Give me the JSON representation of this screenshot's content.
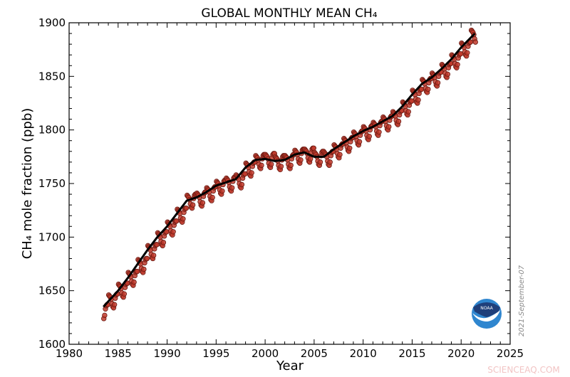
{
  "chart_data": {
    "type": "line",
    "title": "GLOBAL MONTHLY MEAN CH₄",
    "xlabel": "Year",
    "ylabel": "CH₄ mole fraction (ppb)",
    "xlim": [
      1980,
      2025
    ],
    "ylim": [
      1600,
      1900
    ],
    "xticks": [
      "1980",
      "1985",
      "1990",
      "1995",
      "2000",
      "2005",
      "2010",
      "2015",
      "2020",
      "2025"
    ],
    "yticks": [
      "1600",
      "1650",
      "1700",
      "1750",
      "1800",
      "1850",
      "1900"
    ],
    "grid": false,
    "annotation": "2021-September-07",
    "colors": {
      "monthly": "#c0392b",
      "monthly_edge": "#6b1a12",
      "trend": "#000000"
    },
    "series": [
      {
        "kind": "monthly-points",
        "data": [
          {
            "year": 1983,
            "first_month": 7,
            "values": [
              1624,
              1627,
              1633,
              1636,
              1637,
              1637
            ]
          },
          {
            "year": 1984,
            "first_month": 1,
            "values": [
              1646,
              1645,
              1644,
              1642,
              1638,
              1635,
              1634,
              1637,
              1643,
              1646,
              1647,
              1647
            ]
          },
          {
            "year": 1985,
            "first_month": 1,
            "values": [
              1656,
              1655,
              1654,
              1652,
              1648,
              1645,
              1644,
              1647,
              1653,
              1656,
              1657,
              1657
            ]
          },
          {
            "year": 1986,
            "first_month": 1,
            "values": [
              1667,
              1666,
              1665,
              1663,
              1659,
              1656,
              1655,
              1658,
              1664,
              1667,
              1668,
              1668
            ]
          },
          {
            "year": 1987,
            "first_month": 1,
            "values": [
              1679,
              1678,
              1677,
              1675,
              1671,
              1668,
              1667,
              1670,
              1676,
              1679,
              1680,
              1680
            ]
          },
          {
            "year": 1988,
            "first_month": 1,
            "values": [
              1692,
              1691,
              1690,
              1688,
              1684,
              1681,
              1680,
              1683,
              1689,
              1692,
              1693,
              1693
            ]
          },
          {
            "year": 1989,
            "first_month": 1,
            "values": [
              1704,
              1703,
              1702,
              1700,
              1696,
              1693,
              1692,
              1695,
              1701,
              1704,
              1705,
              1705
            ]
          },
          {
            "year": 1990,
            "first_month": 1,
            "values": [
              1714,
              1713,
              1712,
              1710,
              1706,
              1703,
              1702,
              1705,
              1711,
              1714,
              1715,
              1715
            ]
          },
          {
            "year": 1991,
            "first_month": 1,
            "values": [
              1726,
              1725,
              1724,
              1722,
              1718,
              1715,
              1714,
              1717,
              1723,
              1726,
              1727,
              1727
            ]
          },
          {
            "year": 1992,
            "first_month": 1,
            "values": [
              1739,
              1738,
              1737,
              1735,
              1731,
              1728,
              1727,
              1730,
              1736,
              1739,
              1740,
              1740
            ]
          },
          {
            "year": 1993,
            "first_month": 1,
            "values": [
              1741,
              1740,
              1739,
              1737,
              1733,
              1730,
              1729,
              1732,
              1738,
              1741,
              1742,
              1742
            ]
          },
          {
            "year": 1994,
            "first_month": 1,
            "values": [
              1746,
              1745,
              1744,
              1742,
              1738,
              1735,
              1734,
              1737,
              1743,
              1746,
              1747,
              1747
            ]
          },
          {
            "year": 1995,
            "first_month": 1,
            "values": [
              1752,
              1751,
              1750,
              1748,
              1744,
              1741,
              1740,
              1743,
              1749,
              1752,
              1753,
              1753
            ]
          },
          {
            "year": 1996,
            "first_month": 1,
            "values": [
              1755,
              1754,
              1753,
              1751,
              1747,
              1744,
              1743,
              1746,
              1752,
              1755,
              1756,
              1756
            ]
          },
          {
            "year": 1997,
            "first_month": 1,
            "values": [
              1758,
              1757,
              1756,
              1754,
              1750,
              1747,
              1746,
              1749,
              1755,
              1758,
              1759,
              1759
            ]
          },
          {
            "year": 1998,
            "first_month": 1,
            "values": [
              1769,
              1768,
              1767,
              1765,
              1761,
              1758,
              1757,
              1760,
              1766,
              1769,
              1770,
              1770
            ]
          },
          {
            "year": 1999,
            "first_month": 1,
            "values": [
              1776,
              1775,
              1774,
              1772,
              1768,
              1765,
              1764,
              1767,
              1773,
              1776,
              1777,
              1777
            ]
          },
          {
            "year": 2000,
            "first_month": 1,
            "values": [
              1777,
              1776,
              1775,
              1773,
              1769,
              1766,
              1765,
              1768,
              1774,
              1777,
              1778,
              1778
            ]
          },
          {
            "year": 2001,
            "first_month": 1,
            "values": [
              1775,
              1774,
              1773,
              1771,
              1767,
              1764,
              1763,
              1766,
              1772,
              1775,
              1776,
              1776
            ]
          },
          {
            "year": 2002,
            "first_month": 1,
            "values": [
              1776,
              1775,
              1774,
              1772,
              1768,
              1765,
              1764,
              1767,
              1773,
              1776,
              1777,
              1777
            ]
          },
          {
            "year": 2003,
            "first_month": 1,
            "values": [
              1781,
              1780,
              1779,
              1777,
              1773,
              1770,
              1769,
              1772,
              1778,
              1781,
              1782,
              1782
            ]
          },
          {
            "year": 2004,
            "first_month": 1,
            "values": [
              1782,
              1781,
              1780,
              1778,
              1774,
              1771,
              1770,
              1773,
              1779,
              1782,
              1783,
              1783
            ]
          },
          {
            "year": 2005,
            "first_month": 1,
            "values": [
              1779,
              1778,
              1777,
              1775,
              1771,
              1768,
              1767,
              1770,
              1776,
              1779,
              1780,
              1780
            ]
          },
          {
            "year": 2006,
            "first_month": 1,
            "values": [
              1779,
              1778,
              1777,
              1775,
              1771,
              1768,
              1767,
              1770,
              1776,
              1779,
              1780,
              1780
            ]
          },
          {
            "year": 2007,
            "first_month": 1,
            "values": [
              1786,
              1785,
              1784,
              1782,
              1778,
              1775,
              1774,
              1777,
              1783,
              1786,
              1787,
              1787
            ]
          },
          {
            "year": 2008,
            "first_month": 1,
            "values": [
              1792,
              1791,
              1790,
              1788,
              1784,
              1781,
              1780,
              1783,
              1789,
              1792,
              1793,
              1793
            ]
          },
          {
            "year": 2009,
            "first_month": 1,
            "values": [
              1798,
              1797,
              1796,
              1794,
              1790,
              1787,
              1786,
              1789,
              1795,
              1798,
              1799,
              1799
            ]
          },
          {
            "year": 2010,
            "first_month": 1,
            "values": [
              1803,
              1802,
              1801,
              1799,
              1795,
              1792,
              1791,
              1794,
              1800,
              1803,
              1804,
              1804
            ]
          },
          {
            "year": 2011,
            "first_month": 1,
            "values": [
              1807,
              1806,
              1805,
              1803,
              1799,
              1796,
              1795,
              1798,
              1804,
              1807,
              1808,
              1808
            ]
          },
          {
            "year": 2012,
            "first_month": 1,
            "values": [
              1812,
              1811,
              1810,
              1808,
              1804,
              1801,
              1800,
              1803,
              1809,
              1812,
              1813,
              1813
            ]
          },
          {
            "year": 2013,
            "first_month": 1,
            "values": [
              1817,
              1816,
              1815,
              1813,
              1809,
              1806,
              1805,
              1808,
              1814,
              1817,
              1818,
              1818
            ]
          },
          {
            "year": 2014,
            "first_month": 1,
            "values": [
              1826,
              1825,
              1824,
              1822,
              1818,
              1815,
              1814,
              1817,
              1823,
              1826,
              1827,
              1827
            ]
          },
          {
            "year": 2015,
            "first_month": 1,
            "values": [
              1837,
              1836,
              1835,
              1833,
              1829,
              1826,
              1825,
              1828,
              1834,
              1837,
              1838,
              1838
            ]
          },
          {
            "year": 2016,
            "first_month": 1,
            "values": [
              1847,
              1846,
              1845,
              1843,
              1839,
              1836,
              1835,
              1838,
              1844,
              1847,
              1848,
              1848
            ]
          },
          {
            "year": 2017,
            "first_month": 1,
            "values": [
              1853,
              1852,
              1851,
              1849,
              1845,
              1842,
              1841,
              1844,
              1850,
              1853,
              1854,
              1854
            ]
          },
          {
            "year": 2018,
            "first_month": 1,
            "values": [
              1861,
              1860,
              1859,
              1857,
              1853,
              1850,
              1849,
              1852,
              1858,
              1861,
              1862,
              1862
            ]
          },
          {
            "year": 2019,
            "first_month": 1,
            "values": [
              1870,
              1869,
              1868,
              1866,
              1862,
              1859,
              1858,
              1861,
              1867,
              1870,
              1871,
              1871
            ]
          },
          {
            "year": 2020,
            "first_month": 1,
            "values": [
              1881,
              1880,
              1879,
              1877,
              1873,
              1870,
              1869,
              1872,
              1878,
              1881,
              1882,
              1882
            ]
          },
          {
            "year": 2021,
            "first_month": 1,
            "values": [
              1893,
              1892,
              1891,
              1889,
              1885,
              1882
            ]
          }
        ]
      },
      {
        "kind": "trend-line",
        "x": [
          1983.5,
          1985,
          1986,
          1987,
          1988,
          1989,
          1990,
          1991,
          1992,
          1993,
          1994,
          1995,
          1996,
          1997,
          1998,
          1999,
          2000,
          2001,
          2002,
          2003,
          2004,
          2005,
          2006,
          2007,
          2008,
          2009,
          2010,
          2011,
          2012,
          2013,
          2014,
          2015,
          2016,
          2017,
          2018,
          2019,
          2020,
          2021.4
        ],
        "y": [
          1635,
          1650,
          1662,
          1675,
          1688,
          1700,
          1710,
          1722,
          1734,
          1737,
          1742,
          1748,
          1751,
          1754,
          1765,
          1772,
          1773,
          1771,
          1772,
          1777,
          1779,
          1775,
          1775,
          1782,
          1788,
          1794,
          1799,
          1803,
          1808,
          1813,
          1822,
          1833,
          1843,
          1849,
          1857,
          1866,
          1877,
          1890
        ]
      }
    ]
  },
  "logo": {
    "text": "NOAA",
    "colors": {
      "top": "#1f3f7a",
      "bottom": "#2f86cf"
    }
  },
  "watermark": "SCIENCEAQ.COM"
}
